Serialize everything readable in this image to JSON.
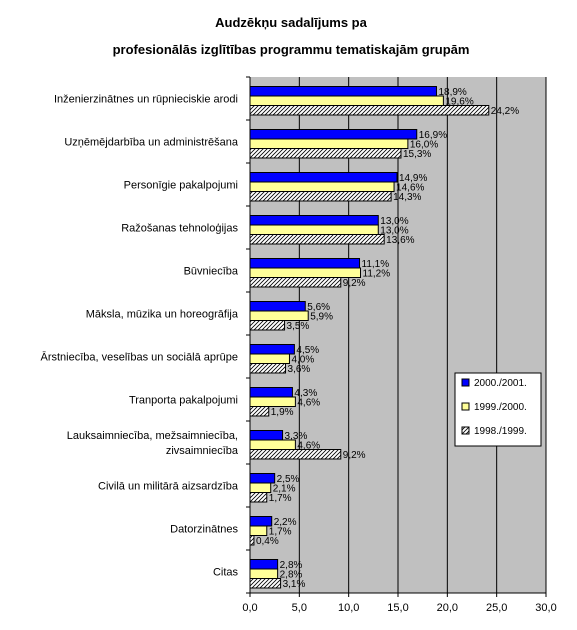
{
  "chart_data": {
    "type": "bar",
    "orientation": "horizontal",
    "title": [
      "Audzēkņu sadalījums pa",
      "profesionālās izglītības programmu tematiskajām grupām"
    ],
    "categories": [
      "Inženierzinātnes un rūpnieciskie arodi",
      "Uzņēmējdarbība un administrēšana",
      "Personīgie pakalpojumi",
      "Ražošanas tehnoloģijas",
      "Būvniecība",
      "Māksla, mūzika un horeogrāfija",
      "Ārstniecība, veselības un sociālā aprūpe",
      "Tranporta pakalpojumi",
      "Lauksaimniecība, mežsaimniecība, zivsaimniecība",
      "Civilā un militārā aizsardzība",
      "Datorzinātnes",
      "Citas"
    ],
    "category_lines": [
      [
        "Inženierzinātnes un rūpnieciskie arodi"
      ],
      [
        "Uzņēmējdarbība un administrēšana"
      ],
      [
        "Personīgie pakalpojumi"
      ],
      [
        "Ražošanas tehnoloģijas"
      ],
      [
        "Būvniecība"
      ],
      [
        "Māksla, mūzika un horeogrāfija"
      ],
      [
        "Ārstniecība, veselības un sociālā aprūpe"
      ],
      [
        "Tranporta pakalpojumi"
      ],
      [
        "Lauksaimniecība, mežsaimniecība,",
        "zivsaimniecība"
      ],
      [
        "Civilā un militārā aizsardzība"
      ],
      [
        "Datorzinātnes"
      ],
      [
        "Citas"
      ]
    ],
    "series": [
      {
        "name": "2000./2001.",
        "color": "#0000FF",
        "pattern": "solid",
        "values": [
          18.9,
          16.9,
          14.9,
          13.0,
          11.1,
          5.6,
          4.5,
          4.3,
          3.3,
          2.5,
          2.2,
          2.8
        ],
        "labels": [
          "18,9%",
          "16,9%",
          "14,9%",
          "13,0%",
          "11,1%",
          "5,6%",
          "4,5%",
          "4,3%",
          "3,3%",
          "2,5%",
          "2,2%",
          "2,8%"
        ]
      },
      {
        "name": "1999./2000.",
        "color": "#FFFF99",
        "pattern": "solid",
        "values": [
          19.6,
          16.0,
          14.6,
          13.0,
          11.2,
          5.9,
          4.0,
          4.6,
          4.6,
          2.1,
          1.7,
          2.8
        ],
        "labels": [
          "19,6%",
          "16,0%",
          "14,6%",
          "13,0%",
          "11,2%",
          "5,9%",
          "4,0%",
          "4,6%",
          "4,6%",
          "2,1%",
          "1,7%",
          "2,8%"
        ]
      },
      {
        "name": "1998./1999.",
        "color": "#FFFFFF",
        "pattern": "hatched",
        "values": [
          24.2,
          15.3,
          14.3,
          13.6,
          9.2,
          3.5,
          3.6,
          1.9,
          9.2,
          1.7,
          0.4,
          3.1
        ],
        "labels": [
          "24,2%",
          "15,3%",
          "14,3%",
          "13,6%",
          "9,2%",
          "3,5%",
          "3,6%",
          "1,9%",
          "9,2%",
          "1,7%",
          "0,4%",
          "3,1%"
        ]
      }
    ],
    "xlim": [
      0,
      30
    ],
    "xticks": [
      0,
      5,
      10,
      15,
      20,
      25,
      30
    ],
    "xtick_labels": [
      "0,0",
      "5,0",
      "10,0",
      "15,0",
      "20,0",
      "25,0",
      "30,0"
    ],
    "grid": "vertical",
    "plot_background": "#C0C0C0",
    "legend_position": "right"
  }
}
